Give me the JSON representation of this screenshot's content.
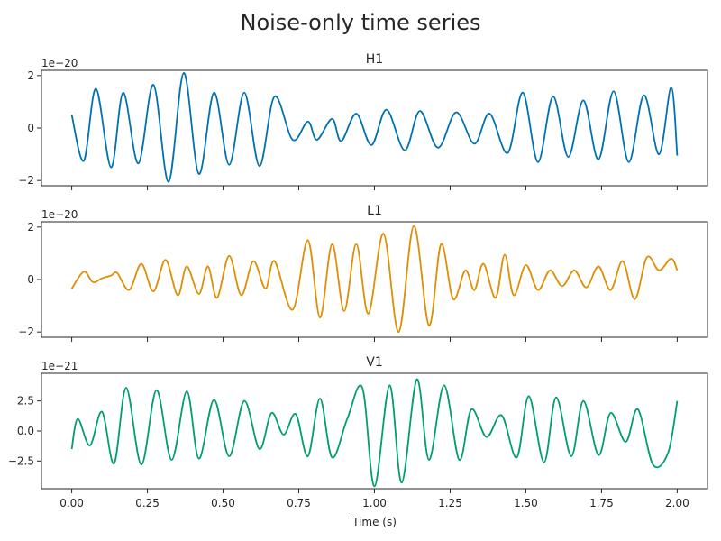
{
  "title": "Noise-only time series",
  "colors": {
    "H1": "#0072b2",
    "L1": "#de8f05",
    "V1": "#029e73"
  },
  "chart_data": [
    {
      "type": "line",
      "panel": "H1",
      "title": "H1",
      "xlabel": "",
      "ylabel": "",
      "offset_text": "1e−20",
      "xlim": [
        -0.1,
        2.1
      ],
      "ylim": [
        -2.2,
        2.2
      ],
      "xticks": [
        0.0,
        0.25,
        0.5,
        0.75,
        1.0,
        1.25,
        1.5,
        1.75,
        2.0
      ],
      "yticks": [
        -2,
        0,
        2
      ],
      "ytick_labels": [
        "−2",
        "0",
        "2"
      ],
      "grid": false,
      "series": [
        {
          "x": [
            0.0,
            0.04,
            0.08,
            0.13,
            0.17,
            0.22,
            0.27,
            0.32,
            0.37,
            0.42,
            0.47,
            0.52,
            0.57,
            0.62,
            0.67,
            0.73,
            0.78,
            0.81,
            0.86,
            0.89,
            0.94,
            0.99,
            1.04,
            1.1,
            1.15,
            1.21,
            1.27,
            1.33,
            1.38,
            1.44,
            1.49,
            1.54,
            1.59,
            1.64,
            1.69,
            1.74,
            1.79,
            1.84,
            1.89,
            1.94,
            1.98,
            2.0
          ],
          "values": [
            0.5,
            -1.25,
            1.5,
            -1.5,
            1.35,
            -1.35,
            1.65,
            -2.05,
            2.1,
            -1.75,
            1.35,
            -1.4,
            1.35,
            -1.45,
            1.2,
            -0.45,
            0.25,
            -0.45,
            0.35,
            -0.5,
            0.55,
            -0.65,
            0.7,
            -0.85,
            0.65,
            -0.75,
            0.6,
            -0.6,
            0.55,
            -0.95,
            1.35,
            -1.3,
            1.2,
            -1.1,
            1.05,
            -1.2,
            1.4,
            -1.3,
            1.25,
            -1.0,
            1.55,
            -1.05
          ]
        }
      ]
    },
    {
      "type": "line",
      "panel": "L1",
      "title": "L1",
      "xlabel": "",
      "ylabel": "",
      "offset_text": "1e−20",
      "xlim": [
        -0.1,
        2.1
      ],
      "ylim": [
        -2.2,
        2.2
      ],
      "xticks": [
        0.0,
        0.25,
        0.5,
        0.75,
        1.0,
        1.25,
        1.5,
        1.75,
        2.0
      ],
      "yticks": [
        -2,
        0,
        2
      ],
      "ytick_labels": [
        "−2",
        "0",
        "2"
      ],
      "grid": false,
      "series": [
        {
          "x": [
            0.0,
            0.04,
            0.07,
            0.1,
            0.13,
            0.15,
            0.19,
            0.23,
            0.27,
            0.31,
            0.35,
            0.38,
            0.42,
            0.45,
            0.48,
            0.52,
            0.56,
            0.6,
            0.64,
            0.67,
            0.73,
            0.78,
            0.82,
            0.86,
            0.9,
            0.94,
            0.98,
            1.03,
            1.08,
            1.13,
            1.18,
            1.22,
            1.26,
            1.3,
            1.33,
            1.36,
            1.4,
            1.43,
            1.46,
            1.5,
            1.54,
            1.58,
            1.62,
            1.66,
            1.7,
            1.74,
            1.78,
            1.82,
            1.86,
            1.9,
            1.94,
            1.98,
            2.0
          ],
          "values": [
            -0.35,
            0.3,
            -0.1,
            0.05,
            0.15,
            0.25,
            -0.4,
            0.6,
            -0.45,
            0.75,
            -0.6,
            0.5,
            -0.55,
            0.5,
            -0.7,
            0.9,
            -0.6,
            0.7,
            -0.35,
            0.7,
            -1.15,
            1.5,
            -1.45,
            1.35,
            -1.2,
            1.35,
            -1.3,
            1.75,
            -2.0,
            2.05,
            -1.75,
            1.35,
            -0.75,
            0.35,
            -0.4,
            0.6,
            -0.7,
            0.95,
            -0.6,
            0.55,
            -0.4,
            0.35,
            -0.25,
            0.35,
            -0.3,
            0.5,
            -0.4,
            0.7,
            -0.75,
            0.85,
            0.35,
            0.8,
            0.35
          ]
        }
      ]
    },
    {
      "type": "line",
      "panel": "V1",
      "title": "V1",
      "xlabel": "Time (s)",
      "ylabel": "",
      "offset_text": "1e−21",
      "xlim": [
        -0.1,
        2.1
      ],
      "ylim": [
        -4.8,
        4.8
      ],
      "xticks": [
        0.0,
        0.25,
        0.5,
        0.75,
        1.0,
        1.25,
        1.5,
        1.75,
        2.0
      ],
      "xtick_labels": [
        "0.00",
        "0.25",
        "0.50",
        "0.75",
        "1.00",
        "1.25",
        "1.50",
        "1.75",
        "2.00"
      ],
      "yticks": [
        -2.5,
        0.0,
        2.5
      ],
      "ytick_labels": [
        "−2.5",
        "0.0",
        "2.5"
      ],
      "grid": false,
      "series": [
        {
          "x": [
            0.0,
            0.02,
            0.06,
            0.1,
            0.14,
            0.18,
            0.23,
            0.28,
            0.33,
            0.38,
            0.42,
            0.47,
            0.52,
            0.57,
            0.62,
            0.66,
            0.7,
            0.74,
            0.78,
            0.82,
            0.86,
            0.91,
            0.96,
            1.0,
            1.05,
            1.09,
            1.14,
            1.18,
            1.23,
            1.28,
            1.32,
            1.37,
            1.42,
            1.47,
            1.51,
            1.56,
            1.6,
            1.65,
            1.69,
            1.74,
            1.78,
            1.83,
            1.87,
            1.92,
            1.97,
            2.0
          ],
          "values": [
            -1.5,
            1.0,
            -1.2,
            1.6,
            -2.7,
            3.6,
            -2.8,
            3.4,
            -2.4,
            3.3,
            -2.3,
            2.6,
            -2.1,
            2.5,
            -1.5,
            1.5,
            -0.3,
            1.4,
            -2.1,
            2.7,
            -2.2,
            1.0,
            3.6,
            -4.6,
            3.8,
            -4.3,
            4.3,
            -2.4,
            3.8,
            -2.4,
            1.8,
            -0.5,
            1.3,
            -2.2,
            2.9,
            -2.6,
            2.8,
            -2.1,
            2.5,
            -2.0,
            1.5,
            -0.9,
            1.8,
            -2.8,
            -1.8,
            2.5
          ]
        }
      ]
    }
  ]
}
